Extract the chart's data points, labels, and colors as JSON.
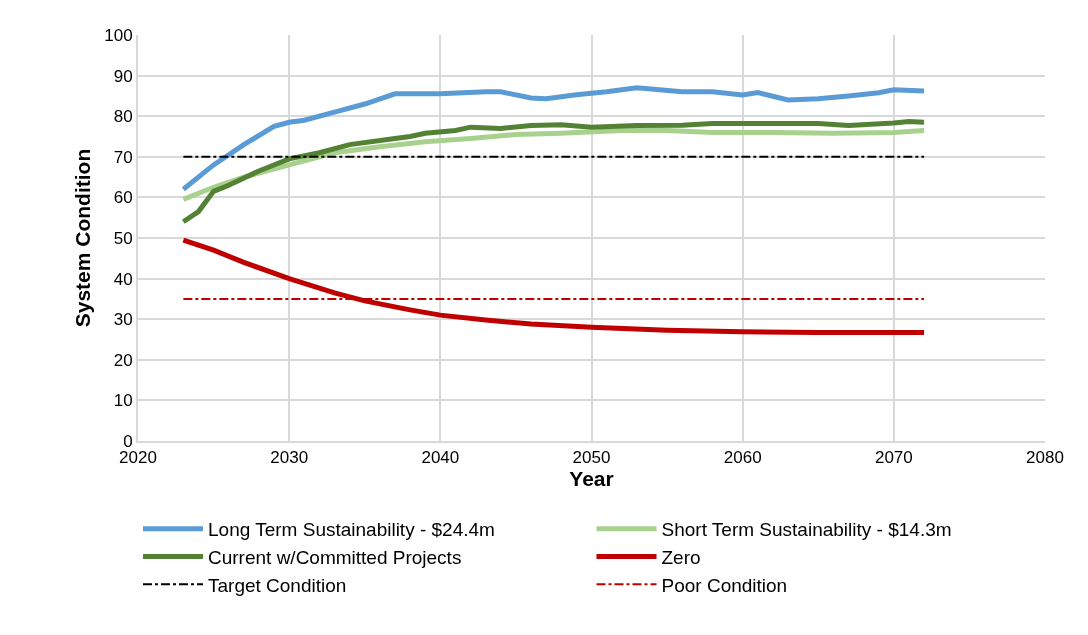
{
  "chart_data": {
    "type": "line",
    "xlabel": "Year",
    "ylabel": "System Condition",
    "xlim": [
      2020,
      2080
    ],
    "xticks": [
      2020,
      2030,
      2040,
      2050,
      2060,
      2070,
      2080
    ],
    "ylim": [
      0,
      100
    ],
    "yticks": [
      0,
      10,
      20,
      30,
      40,
      50,
      60,
      70,
      80,
      90,
      100
    ],
    "grid": true,
    "legend": "bottom",
    "marker": "none",
    "series": [
      {
        "name": "Long Term Sustainability - $24.4m",
        "color": "#5b9bd5",
        "x": [
          2023,
          2025,
          2027,
          2029,
          2030,
          2031,
          2033,
          2035,
          2037,
          2040,
          2043,
          2044,
          2046,
          2047,
          2049,
          2051,
          2053,
          2056,
          2058,
          2060,
          2061,
          2063,
          2065,
          2067,
          2069,
          2070,
          2072
        ],
        "values": [
          62,
          68,
          73,
          77.5,
          78.5,
          79,
          81,
          83,
          85.5,
          85.5,
          86,
          86,
          84.5,
          84.3,
          85.3,
          86,
          87,
          86,
          86,
          85.2,
          85.8,
          84,
          84.3,
          85,
          85.8,
          86.5,
          86.2
        ]
      },
      {
        "name": "Short Term Sustainability - $14.3m",
        "color": "#a9d18e",
        "x": [
          2023,
          2025,
          2027,
          2030,
          2033,
          2036,
          2039,
          2042,
          2045,
          2048,
          2052,
          2055,
          2058,
          2062,
          2066,
          2070,
          2072
        ],
        "values": [
          59.5,
          62.5,
          65,
          68,
          71,
          72.5,
          73.7,
          74.5,
          75.5,
          75.8,
          76.5,
          76.5,
          76,
          76,
          75.8,
          76,
          76.5
        ]
      },
      {
        "name": "Current w/Committed Projects",
        "color": "#548235",
        "x": [
          2023,
          2024,
          2025,
          2026,
          2028,
          2030,
          2032,
          2034,
          2037,
          2038,
          2039,
          2041,
          2042,
          2044,
          2046,
          2048,
          2050,
          2053,
          2056,
          2058,
          2063,
          2065,
          2067,
          2070,
          2071,
          2072
        ],
        "values": [
          54,
          56.5,
          61.5,
          63,
          66.5,
          69.5,
          71,
          73,
          74.5,
          75,
          75.8,
          76.5,
          77.3,
          77,
          77.7,
          77.9,
          77.3,
          77.7,
          77.8,
          78.2,
          78.2,
          78.2,
          77.7,
          78.3,
          78.7,
          78.5
        ]
      },
      {
        "name": "Zero",
        "color": "#c00000",
        "x": [
          2023,
          2025,
          2027,
          2030,
          2033,
          2035,
          2038,
          2040,
          2043,
          2046,
          2050,
          2055,
          2060,
          2065,
          2072
        ],
        "values": [
          49.5,
          47,
          44,
          40,
          36.5,
          34.5,
          32.3,
          31,
          29.8,
          28.8,
          28,
          27.3,
          26.9,
          26.7,
          26.7
        ]
      },
      {
        "name": "Target Condition",
        "color": "#000000",
        "line_style": "dashdot",
        "x": [
          2023,
          2072
        ],
        "values": [
          70,
          70
        ]
      },
      {
        "name": "Poor Condition",
        "color": "#c00000",
        "line_style": "dashdot",
        "x": [
          2023,
          2072
        ],
        "values": [
          35,
          35
        ]
      }
    ]
  }
}
